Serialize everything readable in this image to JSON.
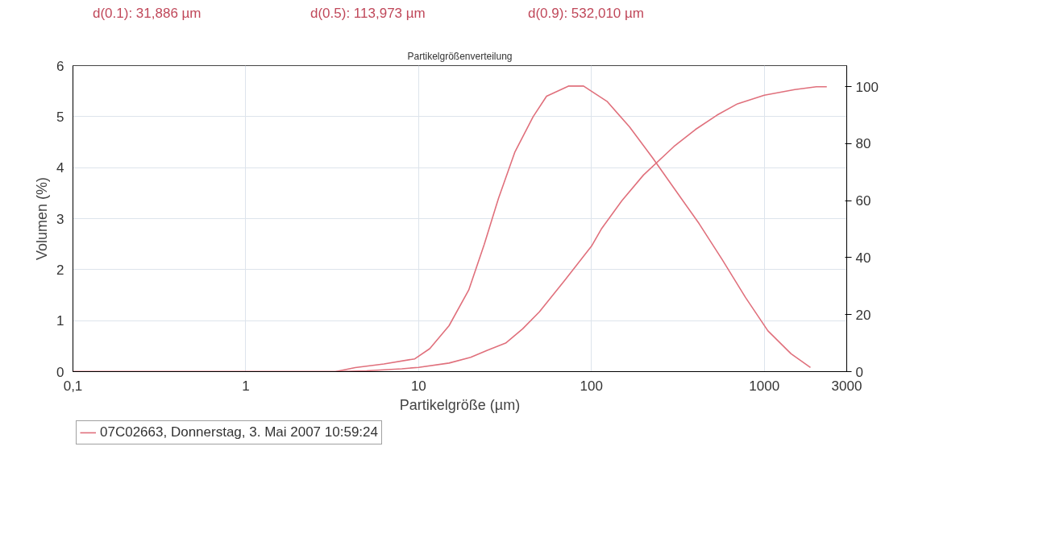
{
  "chart_data": {
    "type": "line",
    "title": "Partikelgrößenverteilung",
    "xlabel": "Partikelgröße (µm)",
    "ylabel": "Volumen (%)",
    "annotations": [
      "d(0.1): 31,886   µm",
      "d(0.5): 113,973   µm",
      "d(0.9): 532,010   µm"
    ],
    "log": "x",
    "grid": true,
    "legend": "bottom",
    "line_style": "solid",
    "marker": "none",
    "xlim": [
      0.1,
      3000
    ],
    "xticks": [
      {
        "value": 0.1,
        "label": "0,1"
      },
      1,
      10,
      100,
      1000,
      3000
    ],
    "ylim": [
      0,
      6
    ],
    "yticks": [
      0,
      1,
      2,
      3,
      4,
      5,
      6
    ],
    "y2lim": [
      0,
      107.4
    ],
    "y2ticks": [
      0,
      20,
      40,
      60,
      80,
      100
    ],
    "series": [
      {
        "name": "07C02663, Donnerstag, 3. Mai 2007 10:59:24",
        "color": "#e0707c",
        "x": [
          0.1,
          1,
          3.3,
          4.3,
          6.3,
          9.5,
          11.6,
          15,
          19.5,
          24,
          29,
          36,
          46,
          55,
          74,
          90,
          123,
          166,
          225,
          300,
          420,
          570,
          780,
          1050,
          1430,
          1850
        ],
        "values": [
          0,
          0,
          0,
          0.08,
          0.15,
          0.25,
          0.45,
          0.9,
          1.6,
          2.5,
          3.4,
          4.3,
          5.0,
          5.4,
          5.6,
          5.6,
          5.3,
          4.8,
          4.2,
          3.6,
          2.9,
          2.2,
          1.45,
          0.8,
          0.35,
          0.08
        ]
      },
      {
        "color": "#e0707c",
        "axis": "y2",
        "x": [
          0.1,
          1,
          3.3,
          5,
          8,
          10,
          15,
          20,
          25,
          31.9,
          40,
          50,
          70,
          100,
          114,
          150,
          200,
          300,
          400,
          532,
          700,
          1000,
          1500,
          2000,
          2300
        ],
        "values": [
          0,
          0,
          0,
          0.3,
          1,
          1.5,
          3,
          5,
          7.5,
          10,
          15,
          21,
          32,
          44,
          50,
          60,
          69,
          79,
          85,
          90,
          94,
          97,
          99,
          100,
          100
        ]
      }
    ]
  }
}
